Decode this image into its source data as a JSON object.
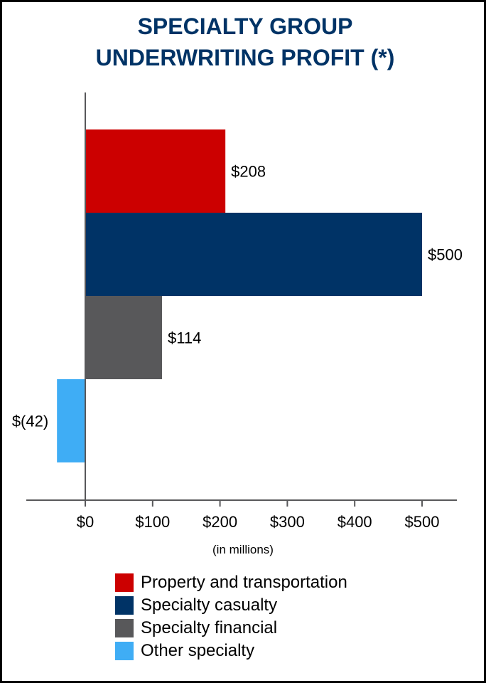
{
  "title_line1": "SPECIALTY GROUP",
  "title_line2": "UNDERWRITING PROFIT (*)",
  "x_unit_label": "(in millions)",
  "chart_data": {
    "type": "bar",
    "orientation": "horizontal",
    "categories": [
      "Property and transportation",
      "Specialty casualty",
      "Specialty financial",
      "Other specialty"
    ],
    "values": [
      208,
      500,
      114,
      -42
    ],
    "data_labels": [
      "$208",
      "$500",
      "$114",
      "$(42)"
    ],
    "colors": [
      "#cc0000",
      "#003366",
      "#58585a",
      "#3fadf5"
    ],
    "xlim": [
      -90,
      550
    ],
    "xticks": [
      0,
      100,
      200,
      300,
      400,
      500
    ],
    "xtick_labels": [
      "$0",
      "$100",
      "$200",
      "$300",
      "$400",
      "$500"
    ],
    "legend_position": "bottom",
    "grid": false
  }
}
